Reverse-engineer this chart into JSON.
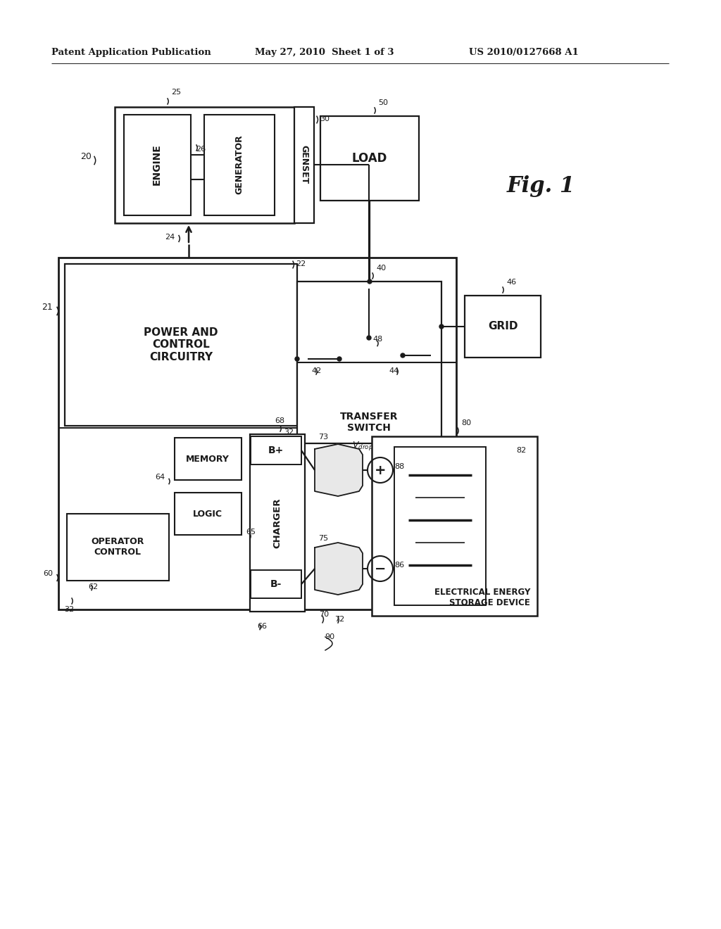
{
  "bg_color": "#ffffff",
  "header_left": "Patent Application Publication",
  "header_mid": "May 27, 2010  Sheet 1 of 3",
  "header_right": "US 2010/0127668 A1",
  "fig_label": "Fig. 1",
  "line_color": "#1a1a1a",
  "text_color": "#1a1a1a"
}
